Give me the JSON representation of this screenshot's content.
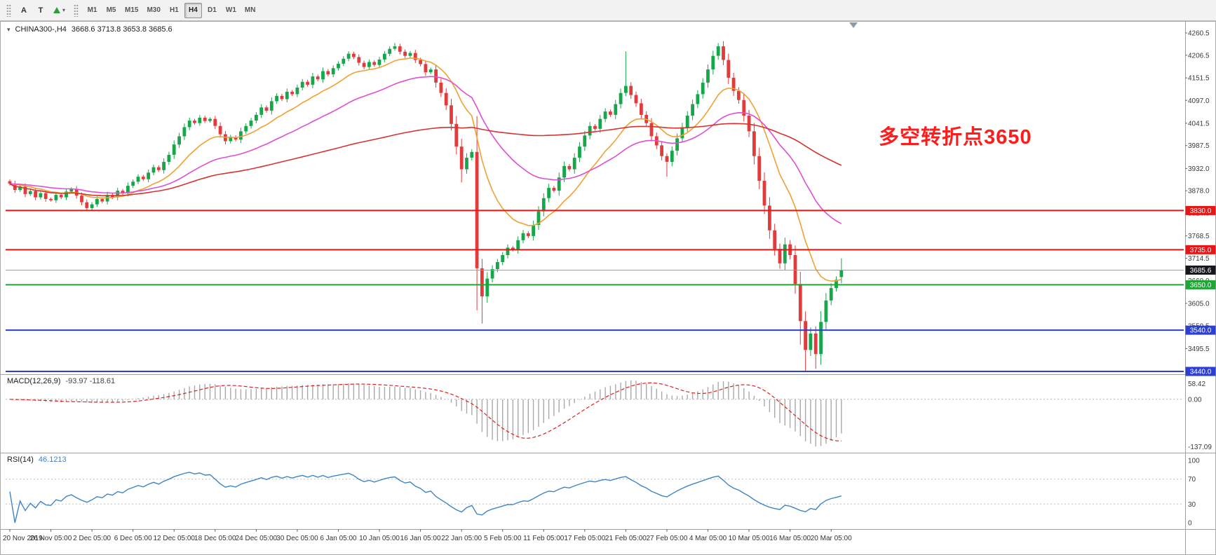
{
  "toolbar": {
    "buttons": {
      "annotate": "A",
      "text": "T"
    },
    "timeframes": [
      "M1",
      "M5",
      "M15",
      "M30",
      "H1",
      "H4",
      "D1",
      "W1",
      "MN"
    ],
    "active_timeframe": "H4"
  },
  "chart": {
    "symbol_period": "CHINA300-,H4",
    "ohlc": "3668.6 3713.8 3653.8 3685.6",
    "annotation": "多空转折点3650",
    "annotation_color": "#ff1c1c",
    "price_axis_labels": [
      "4260.5",
      "4206.5",
      "4151.5",
      "4097.0",
      "4041.5",
      "3987.5",
      "3932.0",
      "3878.0",
      "3824.0",
      "3768.5",
      "3714.5",
      "3660.0",
      "3605.0",
      "3550.5",
      "3495.5",
      "3440.0"
    ],
    "level_lines": [
      {
        "price": 3830.0,
        "label": "3830.0",
        "line_color": "#e81717",
        "width": 2,
        "badge_bg": "#e81717"
      },
      {
        "price": 3735.0,
        "label": "3735.0",
        "line_color": "#e81717",
        "width": 2,
        "badge_bg": "#e81717"
      },
      {
        "price": 3685.6,
        "label": "3685.6",
        "line_color": "#8fa0b3",
        "width": 1,
        "badge_bg": "#17171f"
      },
      {
        "price": 3650.0,
        "label": "3650.0",
        "line_color": "#1fa637",
        "width": 2,
        "badge_bg": "#1fa637"
      },
      {
        "price": 3540.0,
        "label": "3540.0",
        "line_color": "#2b3fd6",
        "width": 2,
        "badge_bg": "#2b3fd6"
      },
      {
        "price": 3440.0,
        "label": "3440.0",
        "line_color": "#2b3fd6",
        "width": 2,
        "badge_bg": "#2b3fd6"
      }
    ],
    "time_labels": [
      {
        "i": 0,
        "t": "20 Nov 2019"
      },
      {
        "i": 8,
        "t": "26 Nov 05:00"
      },
      {
        "i": 16,
        "t": "2 Dec 05:00"
      },
      {
        "i": 24,
        "t": "6 Dec 05:00"
      },
      {
        "i": 32,
        "t": "12 Dec 05:00"
      },
      {
        "i": 40,
        "t": "18 Dec 05:00"
      },
      {
        "i": 48,
        "t": "24 Dec 05:00"
      },
      {
        "i": 56,
        "t": "30 Dec 05:00"
      },
      {
        "i": 64,
        "t": "6 Jan 05:00"
      },
      {
        "i": 72,
        "t": "10 Jan 05:00"
      },
      {
        "i": 80,
        "t": "16 Jan 05:00"
      },
      {
        "i": 88,
        "t": "22 Jan 05:00"
      },
      {
        "i": 96,
        "t": "5 Feb 05:00"
      },
      {
        "i": 104,
        "t": "11 Feb 05:00"
      },
      {
        "i": 112,
        "t": "17 Feb 05:00"
      },
      {
        "i": 120,
        "t": "21 Feb 05:00"
      },
      {
        "i": 128,
        "t": "27 Feb 05:00"
      },
      {
        "i": 136,
        "t": "4 Mar 05:00"
      },
      {
        "i": 144,
        "t": "10 Mar 05:00"
      },
      {
        "i": 152,
        "t": "16 Mar 05:00"
      },
      {
        "i": 160,
        "t": "20 Mar 05:00"
      }
    ]
  },
  "chart_data": {
    "type": "candlestick",
    "symbol": "CHINA300-",
    "timeframe": "H4",
    "ohlc_display": {
      "open": 3668.6,
      "high": 3713.8,
      "low": 3653.8,
      "close": 3685.6
    },
    "ylim": [
      3415,
      4292
    ],
    "closes": [
      3895,
      3880,
      3888,
      3870,
      3877,
      3862,
      3872,
      3858,
      3855,
      3868,
      3862,
      3876,
      3882,
      3866,
      3850,
      3836,
      3845,
      3858,
      3852,
      3868,
      3862,
      3878,
      3872,
      3890,
      3900,
      3912,
      3906,
      3922,
      3935,
      3928,
      3948,
      3965,
      3990,
      4010,
      4032,
      4048,
      4042,
      4055,
      4047,
      4052,
      4035,
      4015,
      3998,
      4008,
      4002,
      4022,
      4035,
      4048,
      4062,
      4080,
      4072,
      4095,
      4108,
      4100,
      4118,
      4112,
      4128,
      4142,
      4135,
      4155,
      4148,
      4168,
      4160,
      4175,
      4186,
      4198,
      4210,
      4202,
      4188,
      4178,
      4190,
      4183,
      4196,
      4210,
      4222,
      4228,
      4215,
      4205,
      4212,
      4195,
      4185,
      4165,
      4172,
      4140,
      4115,
      4085,
      4040,
      3985,
      3930,
      3958,
      3972,
      3690,
      3622,
      3665,
      3688,
      3705,
      3722,
      3740,
      3735,
      3758,
      3775,
      3768,
      3795,
      3828,
      3860,
      3885,
      3878,
      3910,
      3938,
      3930,
      3958,
      3985,
      4012,
      4035,
      4028,
      4052,
      4070,
      4062,
      4088,
      4115,
      4132,
      4110,
      4090,
      4062,
      4042,
      4010,
      3988,
      3962,
      3948,
      3975,
      4005,
      4032,
      4060,
      4088,
      4112,
      4140,
      4172,
      4205,
      4228,
      4195,
      4152,
      4120,
      4098,
      4060,
      4022,
      3962,
      3902,
      3842,
      3782,
      3737,
      3702,
      3748,
      3722,
      3652,
      3562,
      3492,
      3532,
      3482,
      3560,
      3612,
      3642,
      3662,
      3685.6
    ],
    "overrides": {
      "75": {
        "high": 4236
      },
      "88": {
        "low": 3898
      },
      "91": {
        "low": 3588
      },
      "92": {
        "low": 3556
      },
      "120": {
        "high": 4216
      },
      "128": {
        "low": 3912
      },
      "138": {
        "high": 4236
      },
      "154": {
        "low": 3505
      },
      "155": {
        "low": 3442
      },
      "157": {
        "low": 3446
      },
      "162": {
        "open": 3668.6,
        "high": 3713.8,
        "low": 3653.8
      }
    },
    "moving_averages": [
      {
        "name": "fast",
        "type": "ema",
        "period": 13
      },
      {
        "name": "medium",
        "type": "ema",
        "period": 34
      },
      {
        "name": "slow",
        "type": "sma",
        "period": 89
      }
    ],
    "colors": {
      "up": "#17a74b",
      "down": "#e23b3b",
      "ma_fast": "#f0a132",
      "ma_mid": "#de4fd4",
      "ma_slow": "#d6332f",
      "macd_hist": "#a9a9a9",
      "macd_signal": "#e02020",
      "rsi": "#3d85c8"
    }
  },
  "indicators": {
    "macd": {
      "title": "MACD(12,26,9)",
      "values": "-93.97 -118.61",
      "axis_labels": [
        "58.42",
        "0.00",
        "-137.09"
      ],
      "fast": 12,
      "slow": 26,
      "signal": 9
    },
    "rsi": {
      "title": "RSI(14)",
      "value": "46.1213",
      "axis_labels": [
        "100",
        "70",
        "30",
        "0"
      ],
      "period": 14,
      "levels": [
        70,
        30
      ]
    }
  }
}
